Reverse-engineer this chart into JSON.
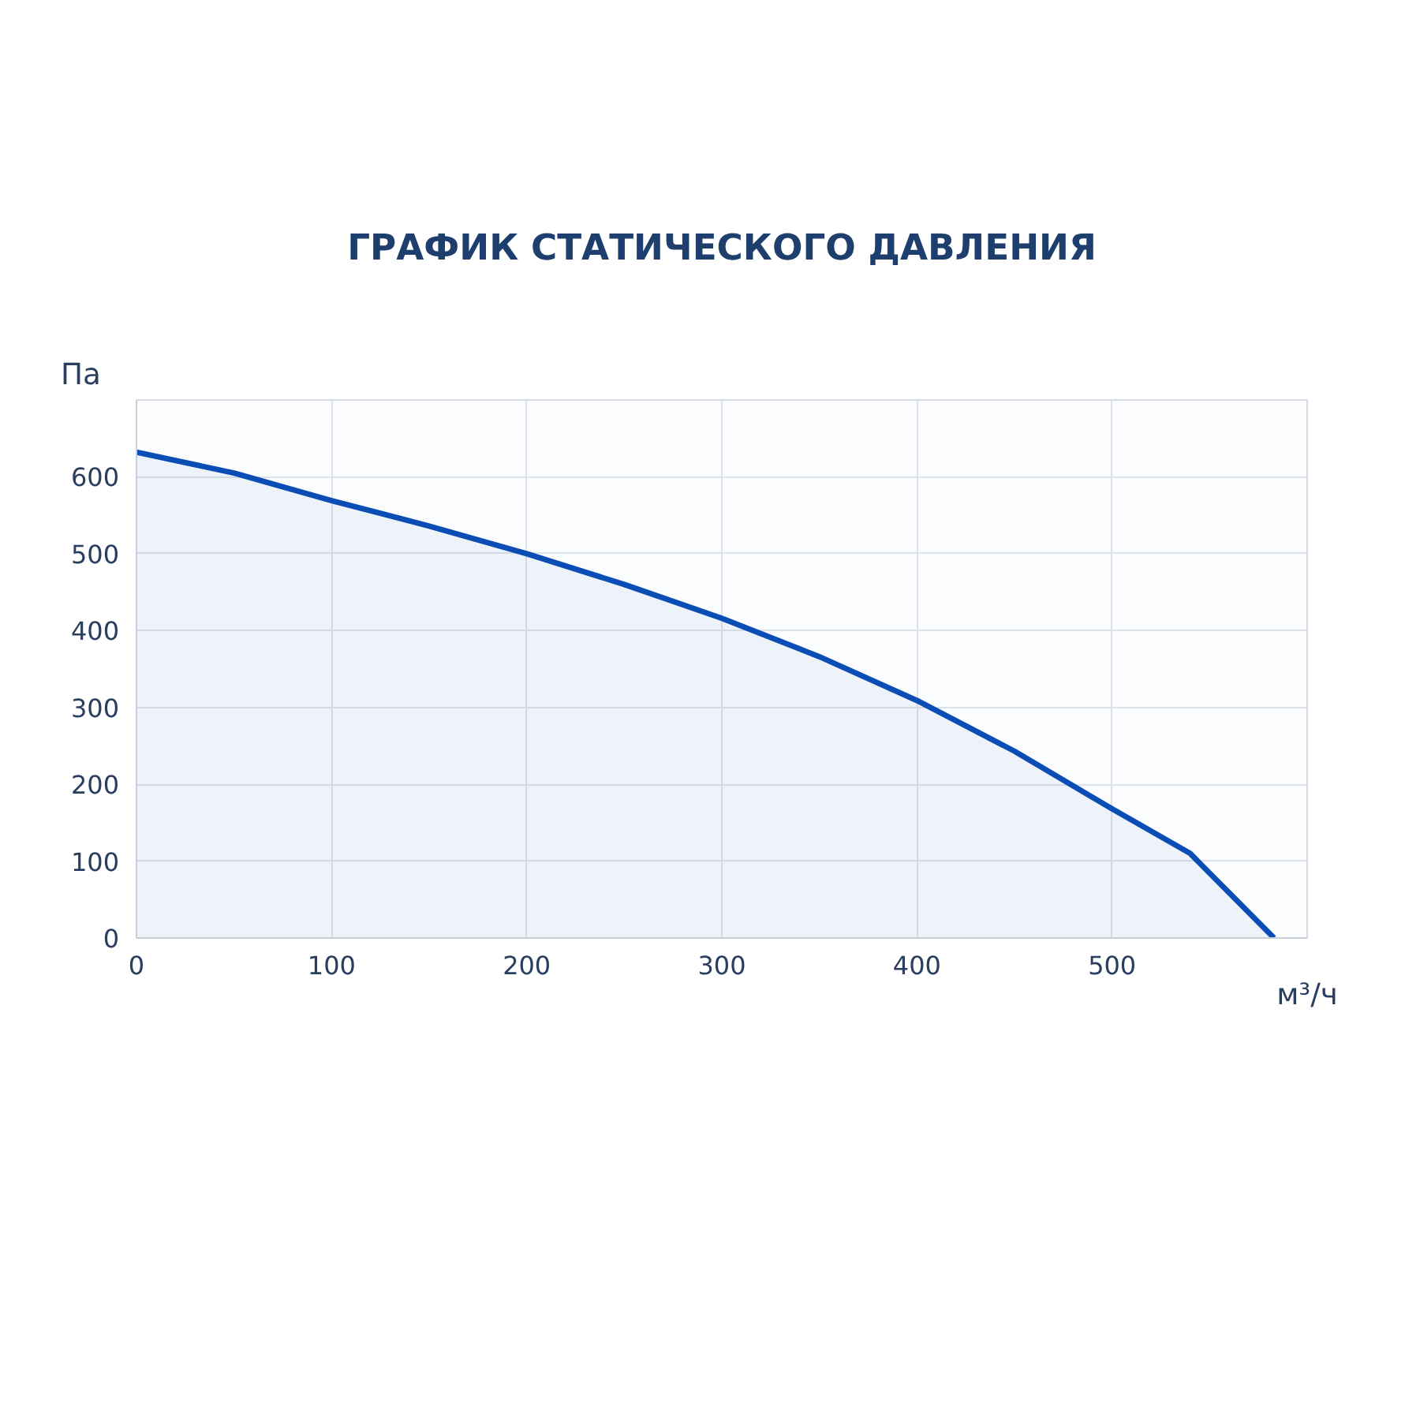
{
  "chart_data": {
    "type": "area",
    "title": "ГРАФИК СТАТИЧЕСКОГО ДАВЛЕНИЯ",
    "xlabel": "м³/ч",
    "ylabel": "Па",
    "x": [
      0,
      50,
      100,
      150,
      200,
      250,
      300,
      350,
      400,
      450,
      500,
      540,
      583
    ],
    "series": [
      {
        "color": "#0a4db5",
        "values": [
          632,
          605,
          569,
          536,
          500,
          460,
          416,
          366,
          309,
          243,
          168,
          110,
          0
        ]
      }
    ],
    "xlim": [
      0,
      600
    ],
    "ylim": [
      0,
      700
    ],
    "xticks": [
      0,
      100,
      200,
      300,
      400,
      500
    ],
    "yticks": [
      0,
      100,
      200,
      300,
      400,
      500,
      600
    ],
    "grid": true
  }
}
